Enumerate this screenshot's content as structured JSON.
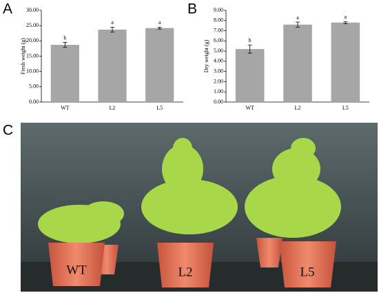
{
  "chart_data": [
    {
      "type": "bar",
      "panel_label": "A",
      "ylabel": "Fresh weight (g)",
      "categories": [
        "WT",
        "L2",
        "L5"
      ],
      "values": [
        18.7,
        23.7,
        24.2
      ],
      "errors": [
        0.8,
        0.8,
        0.3
      ],
      "annotations": [
        "b",
        "a",
        "a"
      ],
      "color": "#a6a6a6",
      "ylim": [
        0,
        30
      ],
      "yticks": [
        {
          "value": 0,
          "label": "0.00"
        },
        {
          "value": 5,
          "label": "5.00"
        },
        {
          "value": 10,
          "label": "10.00"
        },
        {
          "value": 15,
          "label": "15.00"
        },
        {
          "value": 20,
          "label": "20.00"
        },
        {
          "value": 25,
          "label": "25.00"
        },
        {
          "value": 30,
          "label": "30.00"
        }
      ]
    },
    {
      "type": "bar",
      "panel_label": "B",
      "ylabel": "Dry weight (g)",
      "categories": [
        "WT",
        "L2",
        "L5"
      ],
      "values": [
        5.2,
        7.6,
        7.8
      ],
      "errors": [
        0.4,
        0.25,
        0.1
      ],
      "annotations": [
        "b",
        "a",
        "a"
      ],
      "color": "#a6a6a6",
      "ylim": [
        0,
        9
      ],
      "yticks": [
        {
          "value": 0,
          "label": "0.00"
        },
        {
          "value": 1,
          "label": "1.00"
        },
        {
          "value": 2,
          "label": "2.00"
        },
        {
          "value": 3,
          "label": "3.00"
        },
        {
          "value": 4,
          "label": "4.00"
        },
        {
          "value": 5,
          "label": "5.00"
        },
        {
          "value": 6,
          "label": "6.00"
        },
        {
          "value": 7,
          "label": "7.00"
        },
        {
          "value": 8,
          "label": "8.00"
        },
        {
          "value": 9,
          "label": "9.00"
        }
      ]
    }
  ],
  "photo": {
    "panel_label": "C",
    "pot_labels": [
      "WT",
      "L2",
      "L5"
    ]
  }
}
